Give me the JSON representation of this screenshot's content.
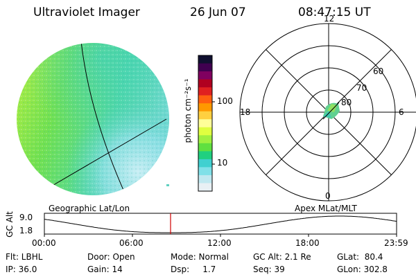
{
  "header": {
    "instrument": "Ultraviolet Imager",
    "date": "26 Jun 07",
    "time": "08:47:15 UT"
  },
  "colorbar": {
    "unit_label": "photon cm⁻²s⁻¹",
    "ticks": [
      "100",
      "10"
    ],
    "colors": [
      "#101030",
      "#400050",
      "#800060",
      "#b00020",
      "#e02020",
      "#ff6010",
      "#ff9900",
      "#ffd040",
      "#ffff99",
      "#e0ff40",
      "#a0f040",
      "#60e040",
      "#20d080",
      "#40d0d0",
      "#80e0e8",
      "#c0e8f0",
      "#e8f0f4"
    ]
  },
  "left_map": {
    "label": "Geographic Lat/Lon",
    "colors": {
      "bright": "#b8f040",
      "mid": "#60e060",
      "cool": "#50d0c0",
      "faint": "#a8e8f0"
    }
  },
  "polar_map": {
    "label": "Apex MLat/MLT",
    "mlt_labels": [
      "12",
      "6",
      "0",
      "18"
    ],
    "mlat_labels": [
      "60",
      "70",
      "80"
    ]
  },
  "altitude_plot": {
    "axis_title": "GC Alt",
    "y_ticks": [
      "9.0",
      "1.8"
    ],
    "x_ticks": [
      "00:00",
      "06:00",
      "12:00",
      "18:00",
      "23:59"
    ],
    "marker_color": "#d00000"
  },
  "footer": {
    "row1": [
      {
        "name": "filter",
        "text": "Flt: LBHL"
      },
      {
        "name": "door",
        "text": "Door: Open"
      },
      {
        "name": "mode",
        "text": "Mode: Normal"
      },
      {
        "name": "gc-alt",
        "text": "GC Alt: 2.1 Re"
      },
      {
        "name": "glat",
        "text": "GLat:  80.4"
      }
    ],
    "row2": [
      {
        "name": "ip",
        "text": "IP: 36.0"
      },
      {
        "name": "gain",
        "text": "Gain: 14"
      },
      {
        "name": "dsp",
        "text": "Dsp:     1.7"
      },
      {
        "name": "seq",
        "text": "Seq: 39"
      },
      {
        "name": "glon",
        "text": "GLon: 302.8"
      }
    ]
  }
}
